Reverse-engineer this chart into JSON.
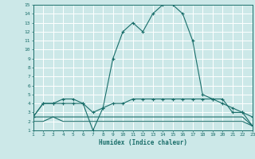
{
  "xlabel": "Humidex (Indice chaleur)",
  "xlim": [
    1,
    23
  ],
  "ylim": [
    1,
    15
  ],
  "xticks": [
    1,
    2,
    3,
    4,
    5,
    6,
    7,
    8,
    9,
    10,
    11,
    12,
    13,
    14,
    15,
    16,
    17,
    18,
    19,
    20,
    21,
    22,
    23
  ],
  "yticks": [
    1,
    2,
    3,
    4,
    5,
    6,
    7,
    8,
    9,
    10,
    11,
    12,
    13,
    14,
    15
  ],
  "bg_color": "#cce8e8",
  "line_color": "#1a6e6a",
  "grid_color": "#ffffff",
  "curves": [
    {
      "x": [
        1,
        2,
        3,
        4,
        5,
        6,
        7,
        8,
        9,
        10,
        11,
        12,
        13,
        14,
        15,
        16,
        17,
        18,
        19,
        20,
        21,
        22,
        23
      ],
      "y": [
        2.5,
        4,
        4,
        4,
        4,
        4,
        3,
        3.5,
        9,
        12,
        13,
        12,
        14,
        15,
        15,
        14,
        11,
        5,
        4.5,
        4.5,
        3,
        3,
        1.5
      ],
      "marker": "+"
    },
    {
      "x": [
        1,
        2,
        3,
        4,
        5,
        6,
        7,
        8,
        9,
        10,
        11,
        12,
        13,
        14,
        15,
        16,
        17,
        18,
        19,
        20,
        21,
        22,
        23
      ],
      "y": [
        2.5,
        4,
        4,
        4.5,
        4.5,
        4,
        1,
        3.5,
        4,
        4,
        4.5,
        4.5,
        4.5,
        4.5,
        4.5,
        4.5,
        4.5,
        4.5,
        4.5,
        4,
        3.5,
        3,
        2.5
      ],
      "marker": "+"
    },
    {
      "x": [
        1,
        2,
        3,
        4,
        5,
        6,
        7,
        8,
        9,
        10,
        11,
        12,
        13,
        14,
        15,
        16,
        17,
        18,
        19,
        20,
        21,
        22,
        23
      ],
      "y": [
        2,
        2,
        2.5,
        2,
        2,
        2,
        2,
        2,
        2,
        2,
        2,
        2,
        2,
        2,
        2,
        2,
        2,
        2,
        2,
        2,
        2,
        2,
        1.5
      ],
      "marker": null
    },
    {
      "x": [
        1,
        2,
        3,
        4,
        5,
        6,
        7,
        8,
        9,
        10,
        11,
        12,
        13,
        14,
        15,
        16,
        17,
        18,
        19,
        20,
        21,
        22,
        23
      ],
      "y": [
        2.5,
        2.5,
        2.5,
        2.5,
        2.5,
        2.5,
        2.5,
        2.5,
        2.5,
        2.5,
        2.5,
        2.5,
        2.5,
        2.5,
        2.5,
        2.5,
        2.5,
        2.5,
        2.5,
        2.5,
        2.5,
        2.5,
        1.5
      ],
      "marker": null
    }
  ]
}
